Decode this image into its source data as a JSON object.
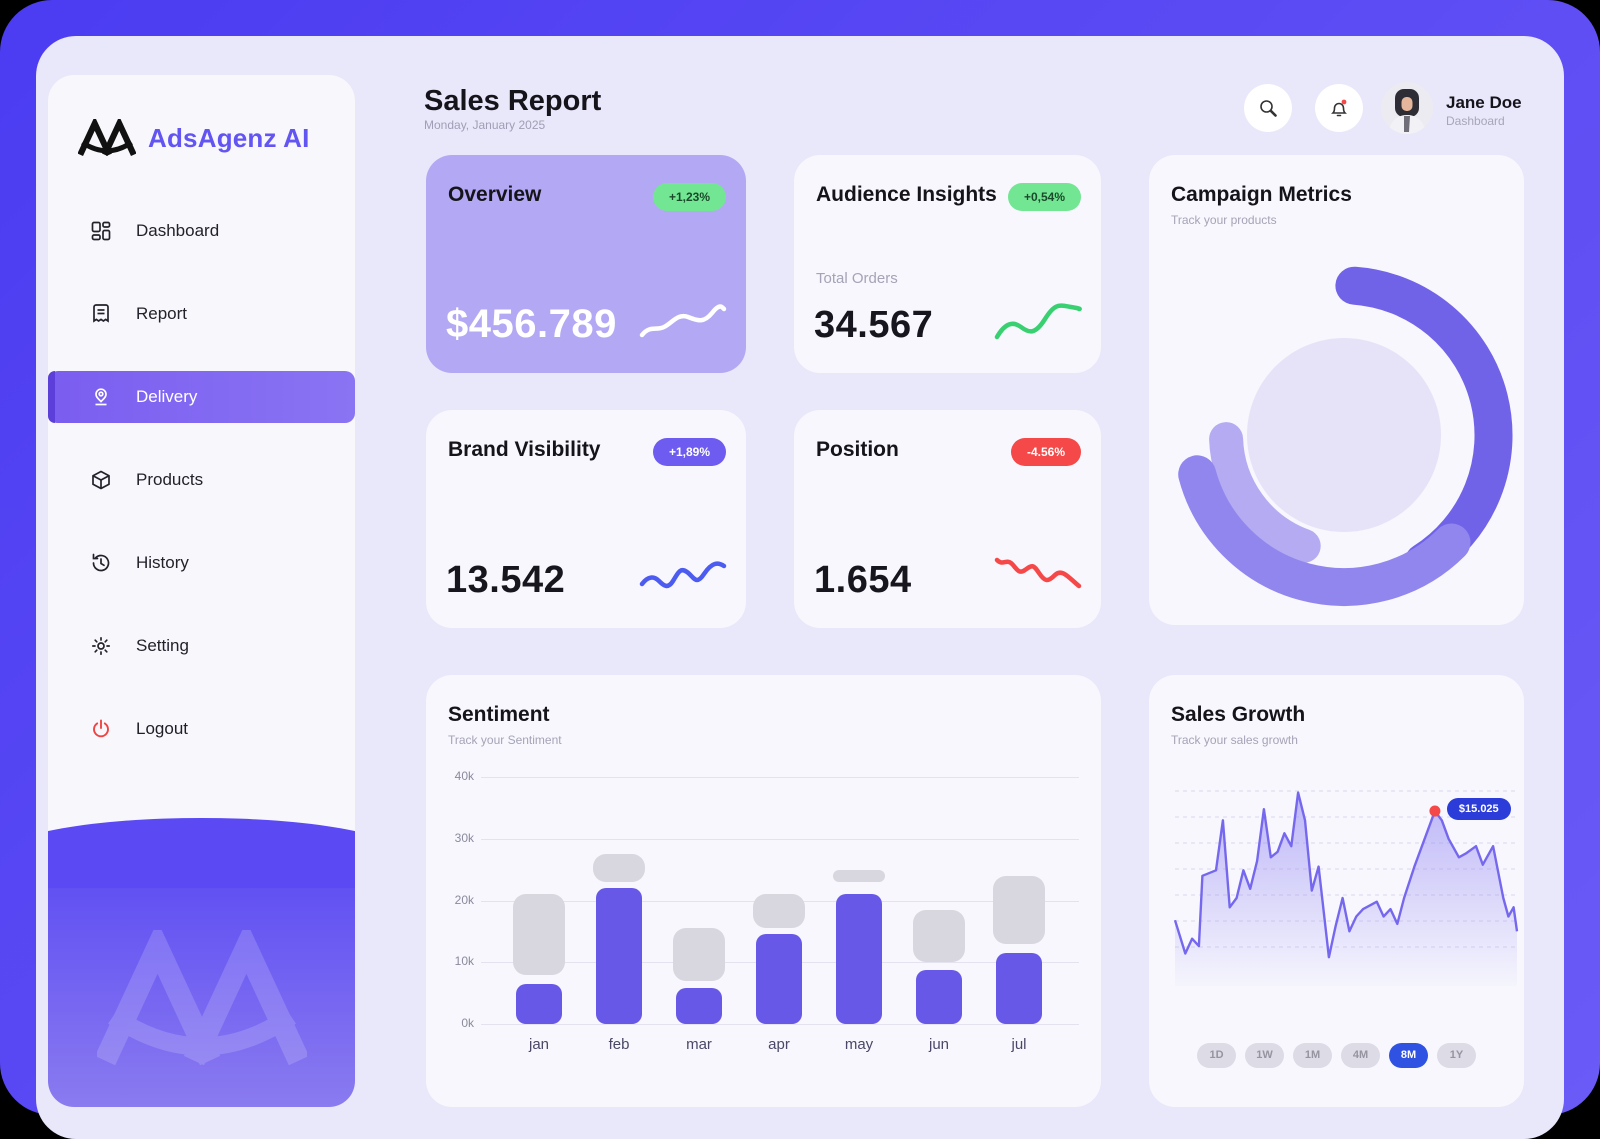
{
  "app": {
    "name": "AdsAgenz AI"
  },
  "header": {
    "title": "Sales Report",
    "date": "Monday, January 2025",
    "user": {
      "name": "Jane Doe",
      "role": "Dashboard"
    }
  },
  "sidebar": {
    "items": [
      {
        "label": "Dashboard",
        "active": false
      },
      {
        "label": "Report",
        "active": false
      },
      {
        "label": "Delivery",
        "active": true
      },
      {
        "label": "Products",
        "active": false
      },
      {
        "label": "History",
        "active": false
      },
      {
        "label": "Setting",
        "active": false
      }
    ],
    "logout_label": "Logout"
  },
  "cards": {
    "overview": {
      "title": "Overview",
      "badge": "+1,23%",
      "value": "$456.789"
    },
    "audience": {
      "title": "Audience Insights",
      "badge": "+0,54%",
      "label": "Total Orders",
      "value": "34.567"
    },
    "campaign": {
      "title": "Campaign Metrics",
      "subtitle": "Track your products"
    },
    "brand": {
      "title": "Brand Visibility",
      "badge": "+1,89%",
      "value": "13.542"
    },
    "position": {
      "title": "Position",
      "badge": "-4.56%",
      "value": "1.654"
    }
  },
  "sales_growth": {
    "title": "Sales Growth",
    "subtitle": "Track your sales growth",
    "tooltip": "$15.025",
    "ranges": [
      "1D",
      "1W",
      "1M",
      "4M",
      "8M",
      "1Y"
    ],
    "active_range": "8M"
  },
  "sentiment": {
    "title": "Sentiment",
    "subtitle": "Track your Sentiment"
  },
  "chart_data": [
    {
      "type": "bar",
      "title": "Sentiment",
      "subtitle": "Track your Sentiment",
      "categories": [
        "jan",
        "feb",
        "mar",
        "apr",
        "may",
        "jun",
        "jul"
      ],
      "series": [
        {
          "name": "primary-sentiment",
          "values": [
            6.5,
            22,
            5.8,
            14.5,
            21,
            8.8,
            11.5
          ]
        },
        {
          "name": "secondary-range",
          "ranges": [
            [
              8,
              21
            ],
            [
              23,
              27.5
            ],
            [
              7,
              15.5
            ],
            [
              15.5,
              21
            ],
            [
              23,
              25
            ],
            [
              10,
              18.5
            ],
            [
              13,
              24
            ]
          ]
        }
      ],
      "ylabel_ticks": [
        "0k",
        "10k",
        "20k",
        "30k",
        "40k"
      ],
      "ylim": [
        0,
        40
      ],
      "unit": "k",
      "grid": true,
      "legend": false
    },
    {
      "type": "area",
      "title": "Sales Growth",
      "subtitle": "Track your sales growth",
      "ylim": [
        0,
        100
      ],
      "grid": "dashed-horizontal",
      "points": [
        [
          0,
          28
        ],
        [
          3,
          10
        ],
        [
          5,
          18
        ],
        [
          7,
          14
        ],
        [
          8,
          52
        ],
        [
          12,
          55
        ],
        [
          14,
          82
        ],
        [
          16,
          35
        ],
        [
          18,
          40
        ],
        [
          20,
          55
        ],
        [
          22,
          45
        ],
        [
          24,
          60
        ],
        [
          26,
          88
        ],
        [
          28,
          62
        ],
        [
          30,
          65
        ],
        [
          32,
          75
        ],
        [
          34,
          68
        ],
        [
          36,
          97
        ],
        [
          38,
          82
        ],
        [
          40,
          44
        ],
        [
          42,
          57
        ],
        [
          45,
          8
        ],
        [
          47,
          25
        ],
        [
          49,
          40
        ],
        [
          51,
          22
        ],
        [
          53,
          30
        ],
        [
          55,
          34
        ],
        [
          57,
          36
        ],
        [
          59,
          38
        ],
        [
          61,
          30
        ],
        [
          63,
          34
        ],
        [
          65,
          26
        ],
        [
          67,
          40
        ],
        [
          70,
          57
        ],
        [
          76,
          87
        ],
        [
          78,
          82
        ],
        [
          80,
          72
        ],
        [
          83,
          62
        ],
        [
          85,
          64
        ],
        [
          88,
          68
        ],
        [
          90,
          58
        ],
        [
          93,
          68
        ],
        [
          96,
          40
        ],
        [
          97.5,
          30
        ],
        [
          99,
          35
        ],
        [
          100,
          22
        ]
      ],
      "marker": {
        "x": 76,
        "y": 87,
        "label": "$15.025"
      }
    }
  ],
  "colors": {
    "accent_purple": "#6758e8",
    "frame_purple": "#5546f2",
    "bar_gray": "#d8d6de",
    "badge_green": "#72e693",
    "badge_red": "#f54848",
    "tooltip_blue": "#2b3cd8",
    "active_pill_blue": "#2f52e2"
  }
}
